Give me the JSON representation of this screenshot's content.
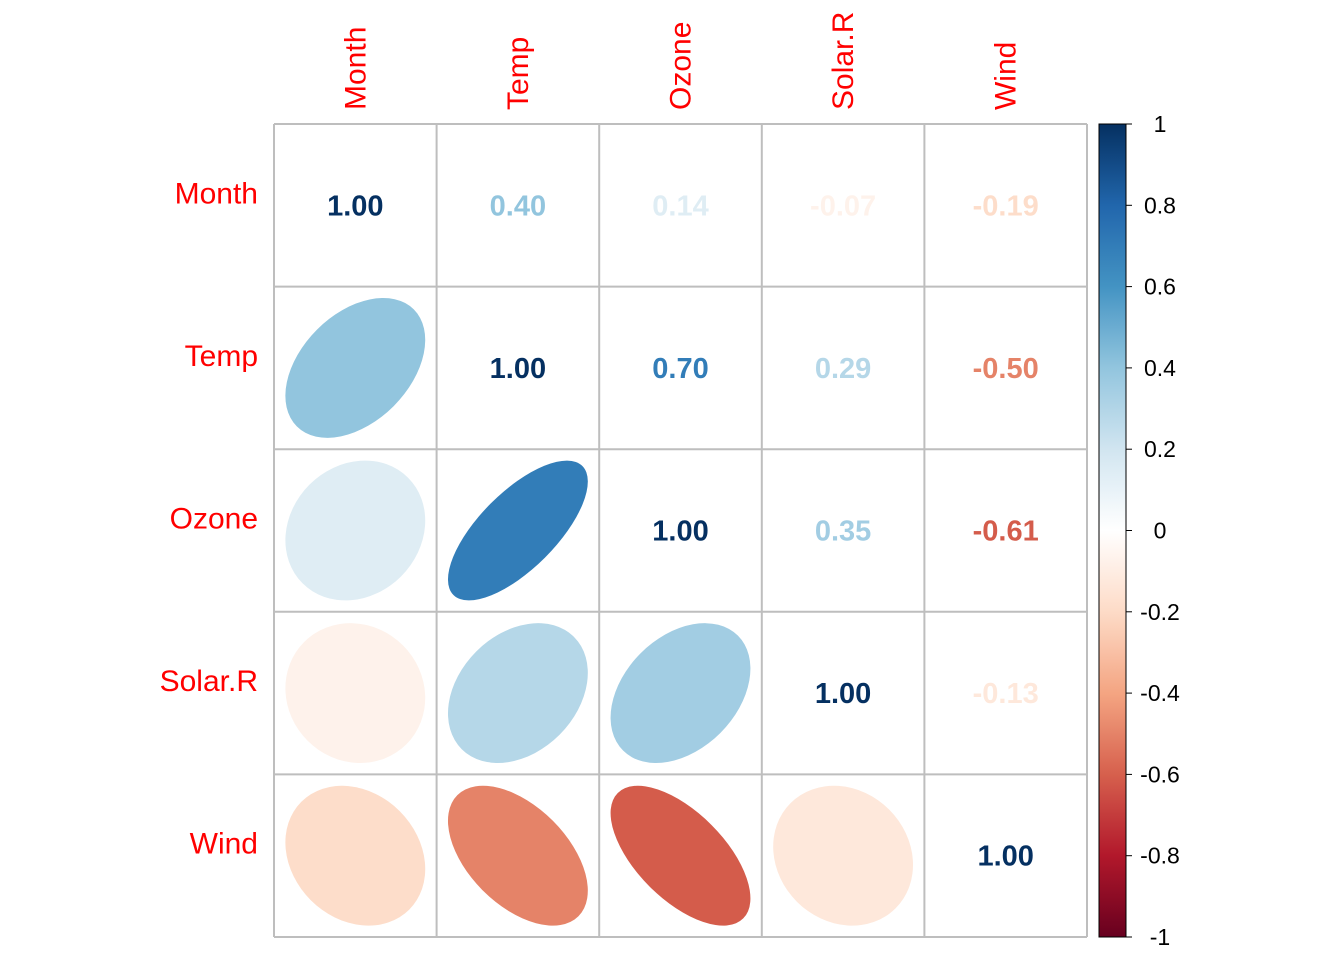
{
  "chart_data": {
    "type": "heatmap",
    "subtype": "correlation-matrix-mixed",
    "variables": [
      "Month",
      "Temp",
      "Ozone",
      "Solar.R",
      "Wind"
    ],
    "values": [
      [
        1.0,
        0.4,
        0.14,
        -0.07,
        -0.19
      ],
      [
        0.4,
        1.0,
        0.7,
        0.29,
        -0.5
      ],
      [
        0.14,
        0.7,
        1.0,
        0.35,
        -0.61
      ],
      [
        -0.07,
        0.29,
        0.35,
        1.0,
        -0.13
      ],
      [
        -0.19,
        -0.5,
        -0.61,
        -0.13,
        1.0
      ]
    ],
    "value_labels": [
      [
        "1.00",
        "0.40",
        "0.14",
        "-0.07",
        "-0.19"
      ],
      [
        "0.40",
        "1.00",
        "0.70",
        "0.29",
        "-0.50"
      ],
      [
        "0.14",
        "0.70",
        "1.00",
        "0.35",
        "-0.61"
      ],
      [
        "-0.07",
        "0.29",
        "0.35",
        "1.00",
        "-0.13"
      ],
      [
        "-0.19",
        "-0.50",
        "-0.61",
        "-0.13",
        "1.00"
      ]
    ],
    "upper_method": "number",
    "lower_method": "ellipse",
    "label_color": "#FF0000",
    "colorbar": {
      "range": [
        -1,
        1
      ],
      "ticks": [
        1,
        0.8,
        0.6,
        0.4,
        0.2,
        0,
        -0.2,
        -0.4,
        -0.6,
        -0.8,
        -1
      ],
      "tick_labels": [
        "1",
        "0.8",
        "0.6",
        "0.4",
        "0.2",
        "0",
        "-0.2",
        "-0.4",
        "-0.6",
        "-0.8",
        "-1"
      ]
    },
    "palette": [
      "#67001F",
      "#B2182B",
      "#D6604D",
      "#F4A582",
      "#FDDBC7",
      "#FFFFFF",
      "#D1E5F0",
      "#92C5DE",
      "#4393C3",
      "#2166AC",
      "#053061"
    ],
    "grid_color": "#BEBEBE"
  }
}
